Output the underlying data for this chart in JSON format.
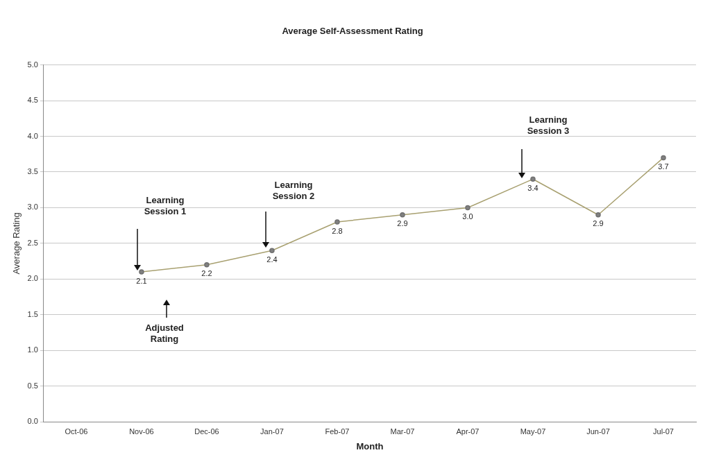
{
  "chart_data": {
    "type": "line",
    "title": "Average Self-Assessment Rating",
    "xlabel": "Month",
    "ylabel": "Average Rating",
    "categories": [
      "Oct-06",
      "Nov-06",
      "Dec-06",
      "Jan-07",
      "Feb-07",
      "Mar-07",
      "Apr-07",
      "May-07",
      "Jun-07",
      "Jul-07"
    ],
    "series": [
      {
        "color": "#a8a070",
        "values": [
          null,
          2.1,
          2.2,
          2.4,
          2.8,
          2.9,
          3.0,
          3.4,
          2.9,
          3.7
        ],
        "value_labels": [
          null,
          "2.1",
          "2.2",
          "2.4",
          "2.8",
          "2.9",
          "3.0",
          "3.4",
          "2.9",
          "3.7"
        ]
      }
    ],
    "ylim": [
      0,
      5
    ],
    "yticks": [
      {
        "value": 0,
        "label": "0.0"
      },
      {
        "value": 0.5,
        "label": "0.5"
      },
      {
        "value": 1,
        "label": "1.0"
      },
      {
        "value": 1.5,
        "label": "1.5"
      },
      {
        "value": 2,
        "label": "2.0"
      },
      {
        "value": 2.5,
        "label": "2.5"
      },
      {
        "value": 3,
        "label": "3.0"
      },
      {
        "value": 3.5,
        "label": "3.5"
      },
      {
        "value": 4,
        "label": "4.0"
      },
      {
        "value": 4.5,
        "label": "4.5"
      },
      {
        "value": 5,
        "label": "5.0"
      }
    ],
    "grid": "y",
    "legend": false,
    "marker": "circle",
    "line_style": "solid",
    "annotations": [
      "Learning Session 1",
      "Learning Session 2",
      "Learning Session 3",
      "Adjusted Rating"
    ]
  }
}
